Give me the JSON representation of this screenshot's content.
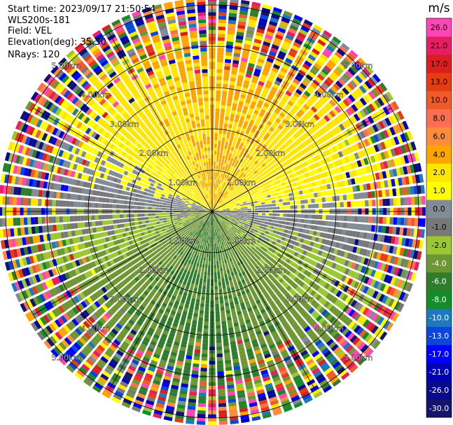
{
  "header": {
    "start_time": "Start time: 2023/09/17 21:50:54",
    "instrument": "WLS200s-181",
    "field": "Field: VEL",
    "elevation": "Elevation(deg): 35.30",
    "nrays": "NRays: 120"
  },
  "chart_data": {
    "type": "heatmap",
    "subtype": "radar-ppi",
    "field": "VEL",
    "units": "m/s",
    "nrays": 120,
    "elevation_deg": 35.3,
    "max_range_km": 5.0,
    "range_ring_labels": [
      "1.00km",
      "2.00km",
      "3.00km",
      "4.00km",
      "5.00km"
    ],
    "ring_label_angles_deg": [
      45,
      135,
      225,
      315
    ],
    "azimuth_grid_step_deg": 30,
    "colorbar": {
      "title": "m/s",
      "colors": [
        "#14146e",
        "#0a0a8c",
        "#0000b4",
        "#0000ff",
        "#0a46dc",
        "#1e78be",
        "#148c28",
        "#2d7d2d",
        "#6e9632",
        "#9bc832",
        "#787878",
        "#828c96",
        "#ffff00",
        "#ffe600",
        "#ffa500",
        "#ff8c3c",
        "#ff6e50",
        "#f05a28",
        "#e63c14",
        "#dc1e1e",
        "#e61e64",
        "#ff46b4"
      ],
      "tick_labels": [
        "-30.0",
        "-26.0",
        "-21.0",
        "-17.0",
        "-13.0",
        "-10.0",
        "-8.0",
        "-6.0",
        "-4.0",
        "-2.0",
        "-1.0",
        "0.0",
        "1.0",
        "2.0",
        "4.0",
        "6.0",
        "8.0",
        "10.0",
        "13.0",
        "17.0",
        "21.0",
        "26.0"
      ]
    }
  }
}
